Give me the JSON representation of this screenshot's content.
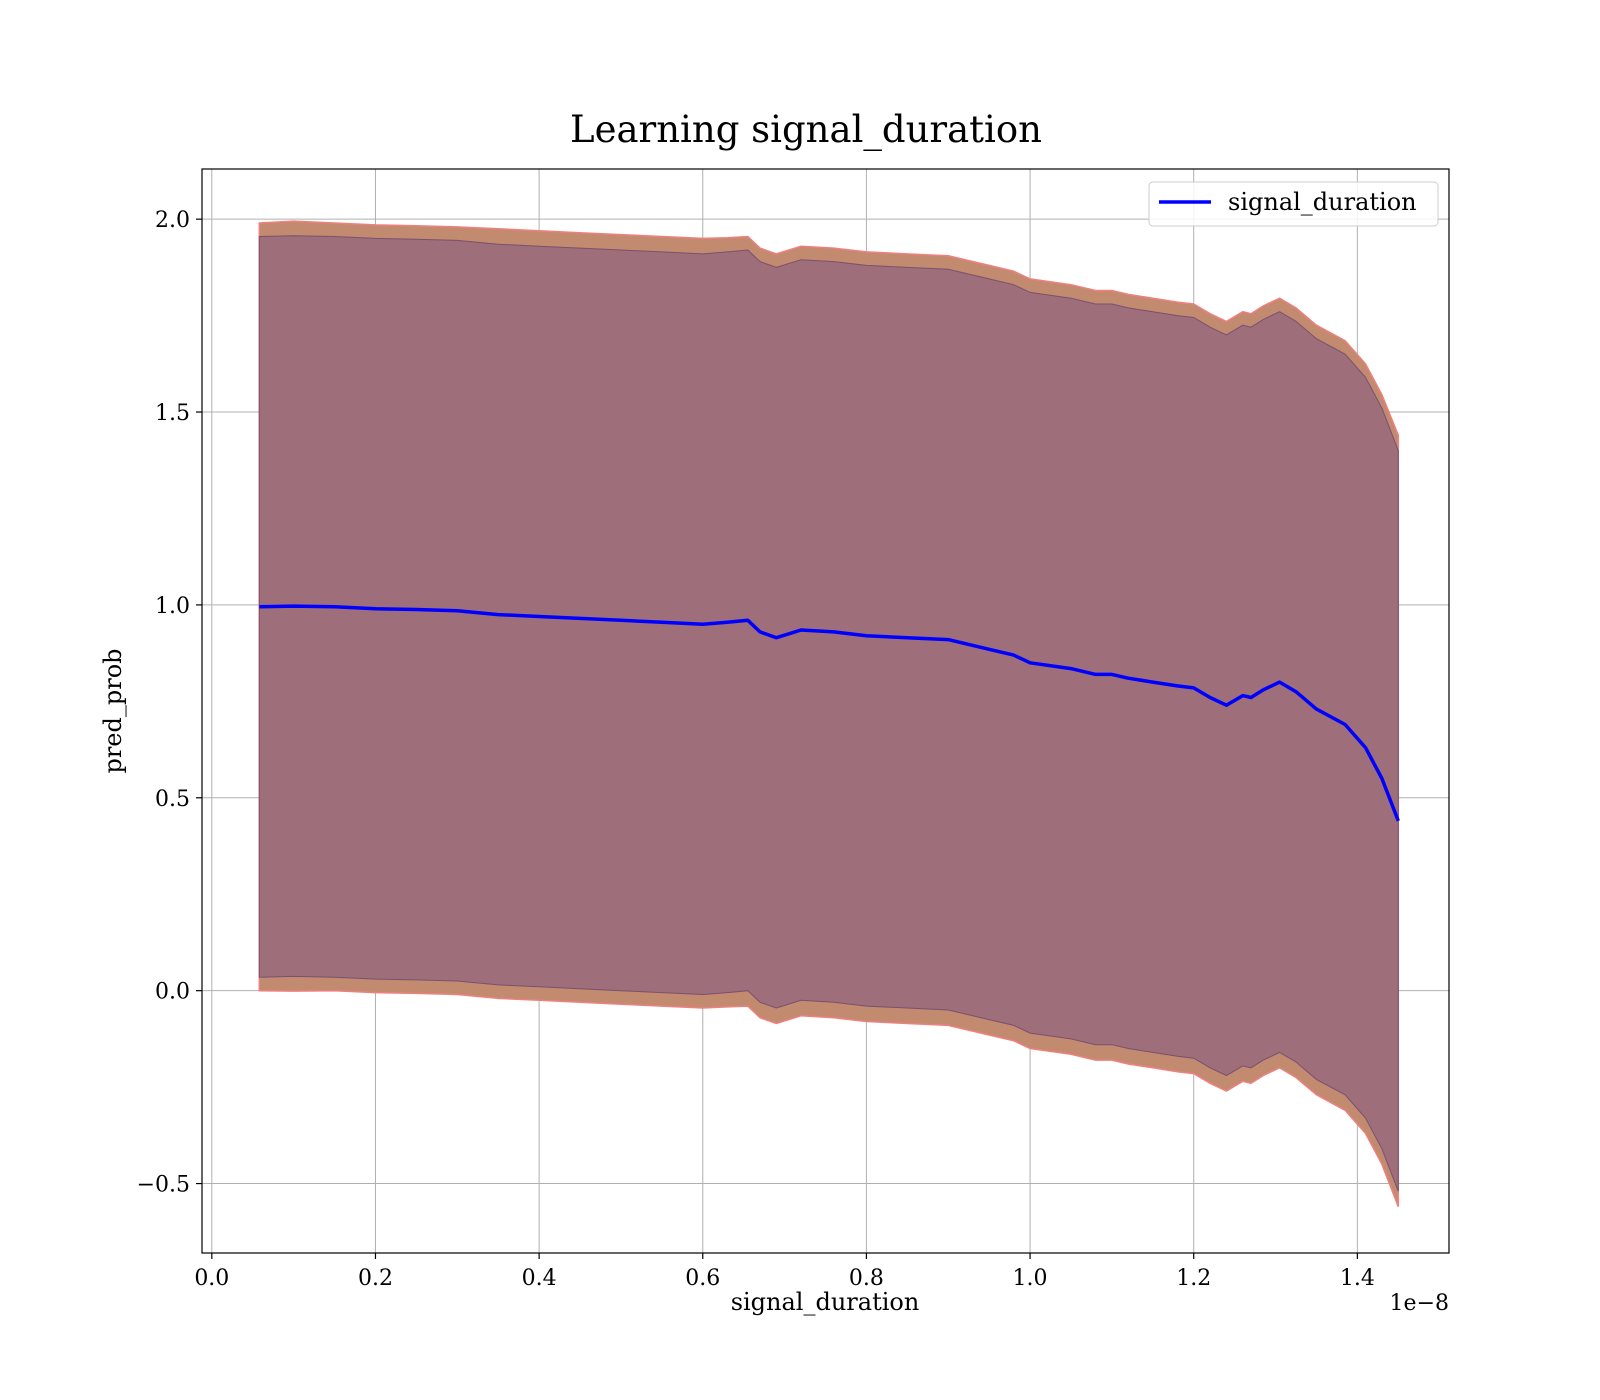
{
  "chart_data": {
    "type": "line",
    "title": "Learning signal_duration",
    "xlabel": "signal_duration",
    "ylabel": "pred_prob",
    "x_offset_label": "1e−8",
    "xlim": [
      -0.012,
      1.512
    ],
    "ylim": [
      -0.68,
      2.13
    ],
    "x_ticks": [
      0.0,
      0.2,
      0.4,
      0.6,
      0.8,
      1.0,
      1.2,
      1.4
    ],
    "x_tick_labels": [
      "0.0",
      "0.2",
      "0.4",
      "0.6",
      "0.8",
      "1.0",
      "1.2",
      "1.4"
    ],
    "y_ticks": [
      -0.5,
      0.0,
      0.5,
      1.0,
      1.5,
      2.0
    ],
    "y_tick_labels": [
      "−0.5",
      "0.0",
      "0.5",
      "1.0",
      "1.5",
      "2.0"
    ],
    "grid": true,
    "legend_position": "top-right",
    "colors": {
      "line": "#0000ff",
      "outer_band": "#c28a6e",
      "outer_band_edge": "#f08080",
      "inner_band": "#9e6e7a",
      "inner_band_edge": "#7a5070"
    },
    "x": [
      0.058,
      0.1,
      0.15,
      0.2,
      0.25,
      0.3,
      0.35,
      0.4,
      0.45,
      0.5,
      0.55,
      0.6,
      0.63,
      0.655,
      0.67,
      0.69,
      0.72,
      0.76,
      0.8,
      0.85,
      0.9,
      0.95,
      0.98,
      1.0,
      1.05,
      1.08,
      1.1,
      1.12,
      1.15,
      1.18,
      1.2,
      1.22,
      1.24,
      1.26,
      1.27,
      1.285,
      1.305,
      1.325,
      1.35,
      1.385,
      1.41,
      1.43,
      1.45
    ],
    "series": [
      {
        "name": "signal_duration",
        "values": [
          0.995,
          0.997,
          0.995,
          0.99,
          0.988,
          0.985,
          0.975,
          0.97,
          0.965,
          0.96,
          0.955,
          0.95,
          0.955,
          0.96,
          0.93,
          0.915,
          0.935,
          0.93,
          0.92,
          0.915,
          0.91,
          0.885,
          0.87,
          0.85,
          0.835,
          0.82,
          0.82,
          0.81,
          0.8,
          0.79,
          0.785,
          0.76,
          0.74,
          0.765,
          0.76,
          0.78,
          0.8,
          0.775,
          0.73,
          0.69,
          0.63,
          0.55,
          0.44
        ]
      }
    ],
    "outer_band": {
      "upper": [
        1.99,
        1.995,
        1.99,
        1.985,
        1.983,
        1.98,
        1.975,
        1.97,
        1.965,
        1.96,
        1.955,
        1.95,
        1.952,
        1.955,
        1.925,
        1.91,
        1.93,
        1.925,
        1.915,
        1.91,
        1.905,
        1.88,
        1.865,
        1.845,
        1.83,
        1.815,
        1.815,
        1.805,
        1.795,
        1.785,
        1.78,
        1.755,
        1.735,
        1.76,
        1.755,
        1.775,
        1.795,
        1.77,
        1.725,
        1.685,
        1.625,
        1.545,
        1.44
      ],
      "lower": [
        0.0,
        -0.001,
        0.0,
        -0.005,
        -0.007,
        -0.01,
        -0.02,
        -0.025,
        -0.03,
        -0.035,
        -0.04,
        -0.045,
        -0.042,
        -0.04,
        -0.07,
        -0.085,
        -0.065,
        -0.07,
        -0.08,
        -0.085,
        -0.09,
        -0.115,
        -0.13,
        -0.15,
        -0.165,
        -0.18,
        -0.18,
        -0.19,
        -0.2,
        -0.21,
        -0.215,
        -0.24,
        -0.26,
        -0.235,
        -0.24,
        -0.22,
        -0.2,
        -0.225,
        -0.27,
        -0.31,
        -0.37,
        -0.45,
        -0.56
      ]
    },
    "inner_band": {
      "upper": [
        1.955,
        1.957,
        1.955,
        1.95,
        1.948,
        1.945,
        1.935,
        1.93,
        1.925,
        1.92,
        1.915,
        1.91,
        1.915,
        1.92,
        1.89,
        1.875,
        1.895,
        1.89,
        1.88,
        1.875,
        1.87,
        1.845,
        1.83,
        1.81,
        1.795,
        1.78,
        1.78,
        1.77,
        1.76,
        1.75,
        1.745,
        1.72,
        1.7,
        1.725,
        1.72,
        1.74,
        1.76,
        1.735,
        1.69,
        1.65,
        1.59,
        1.51,
        1.4
      ],
      "lower": [
        0.035,
        0.037,
        0.035,
        0.03,
        0.028,
        0.025,
        0.015,
        0.01,
        0.005,
        0.0,
        -0.005,
        -0.01,
        -0.005,
        0.0,
        -0.03,
        -0.045,
        -0.025,
        -0.03,
        -0.04,
        -0.045,
        -0.05,
        -0.075,
        -0.09,
        -0.11,
        -0.125,
        -0.14,
        -0.14,
        -0.15,
        -0.16,
        -0.17,
        -0.175,
        -0.2,
        -0.22,
        -0.195,
        -0.2,
        -0.18,
        -0.16,
        -0.185,
        -0.23,
        -0.27,
        -0.33,
        -0.41,
        -0.52
      ]
    }
  }
}
